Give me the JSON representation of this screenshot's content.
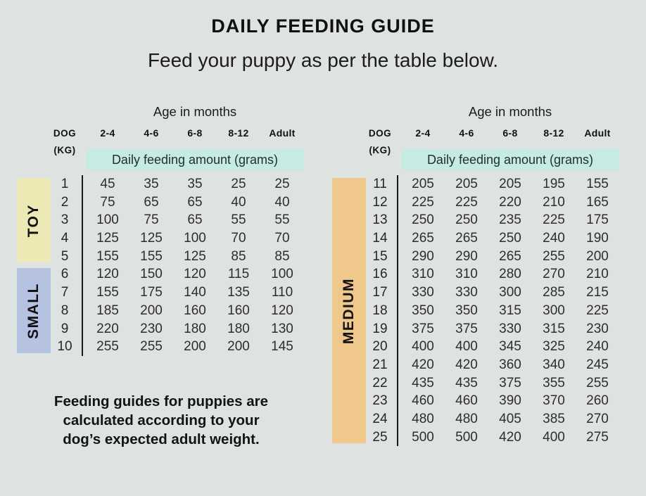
{
  "page": {
    "title": "DAILY FEEDING GUIDE",
    "subtitle": "Feed your puppy as per the table below.",
    "note_lines": [
      "Feeding guides for puppies are",
      "calculated according to your",
      "dog’s expected adult weight."
    ]
  },
  "colors": {
    "background": "#dee3e2",
    "band_teal": "#c6ebe2",
    "toy_yellow": "#ece9b5",
    "small_blue": "#b6c2e2",
    "medium_orange": "#f1c88b",
    "divider_black": "#191919"
  },
  "chart_data": {
    "type": "table",
    "title": "DAILY FEEDING GUIDE",
    "subtitle": "Feed your puppy as per the table below.",
    "unit": "grams per day",
    "note": "Feeding guides for puppies are calculated according to your dog’s expected adult weight.",
    "tables": [
      {
        "age_header": "Age in months",
        "dog_label": "DOG",
        "kg_label": "(KG)",
        "age_columns": [
          "2-4",
          "4-6",
          "6-8",
          "8-12",
          "Adult"
        ],
        "band_label": "Daily feeding amount (grams)",
        "groups": [
          {
            "label": "TOY",
            "color": "#ece9b5",
            "rows": [
              {
                "kg": "1",
                "values": [
                  "45",
                  "35",
                  "35",
                  "25",
                  "25"
                ]
              },
              {
                "kg": "2",
                "values": [
                  "75",
                  "65",
                  "65",
                  "40",
                  "40"
                ]
              },
              {
                "kg": "3",
                "values": [
                  "100",
                  "75",
                  "65",
                  "55",
                  "55"
                ]
              },
              {
                "kg": "4",
                "values": [
                  "125",
                  "125",
                  "100",
                  "70",
                  "70"
                ]
              },
              {
                "kg": "5",
                "values": [
                  "155",
                  "155",
                  "125",
                  "85",
                  "85"
                ]
              }
            ]
          },
          {
            "label": "SMALL",
            "color": "#b6c2e2",
            "rows": [
              {
                "kg": "6",
                "values": [
                  "120",
                  "150",
                  "120",
                  "115",
                  "100"
                ]
              },
              {
                "kg": "7",
                "values": [
                  "155",
                  "175",
                  "140",
                  "135",
                  "110"
                ]
              },
              {
                "kg": "8",
                "values": [
                  "185",
                  "200",
                  "160",
                  "160",
                  "120"
                ]
              },
              {
                "kg": "9",
                "values": [
                  "220",
                  "230",
                  "180",
                  "180",
                  "130"
                ]
              },
              {
                "kg": "10",
                "values": [
                  "255",
                  "255",
                  "200",
                  "200",
                  "145"
                ]
              }
            ]
          }
        ]
      },
      {
        "age_header": "Age in months",
        "dog_label": "DOG",
        "kg_label": "(KG)",
        "age_columns": [
          "2-4",
          "4-6",
          "6-8",
          "8-12",
          "Adult"
        ],
        "band_label": "Daily feeding amount (grams)",
        "groups": [
          {
            "label": "MEDIUM",
            "color": "#f1c88b",
            "rows": [
              {
                "kg": "11",
                "values": [
                  "205",
                  "205",
                  "205",
                  "195",
                  "155"
                ]
              },
              {
                "kg": "12",
                "values": [
                  "225",
                  "225",
                  "220",
                  "210",
                  "165"
                ]
              },
              {
                "kg": "13",
                "values": [
                  "250",
                  "250",
                  "235",
                  "225",
                  "175"
                ]
              },
              {
                "kg": "14",
                "values": [
                  "265",
                  "265",
                  "250",
                  "240",
                  "190"
                ]
              },
              {
                "kg": "15",
                "values": [
                  "290",
                  "290",
                  "265",
                  "255",
                  "200"
                ]
              },
              {
                "kg": "16",
                "values": [
                  "310",
                  "310",
                  "280",
                  "270",
                  "210"
                ]
              },
              {
                "kg": "17",
                "values": [
                  "330",
                  "330",
                  "300",
                  "285",
                  "215"
                ]
              },
              {
                "kg": "18",
                "values": [
                  "350",
                  "350",
                  "315",
                  "300",
                  "225"
                ]
              },
              {
                "kg": "19",
                "values": [
                  "375",
                  "375",
                  "330",
                  "315",
                  "230"
                ]
              },
              {
                "kg": "20",
                "values": [
                  "400",
                  "400",
                  "345",
                  "325",
                  "240"
                ]
              },
              {
                "kg": "21",
                "values": [
                  "420",
                  "420",
                  "360",
                  "340",
                  "245"
                ]
              },
              {
                "kg": "22",
                "values": [
                  "435",
                  "435",
                  "375",
                  "355",
                  "255"
                ]
              },
              {
                "kg": "23",
                "values": [
                  "460",
                  "460",
                  "390",
                  "370",
                  "260"
                ]
              },
              {
                "kg": "24",
                "values": [
                  "480",
                  "480",
                  "405",
                  "385",
                  "270"
                ]
              },
              {
                "kg": "25",
                "values": [
                  "500",
                  "500",
                  "420",
                  "400",
                  "275"
                ]
              }
            ]
          }
        ]
      }
    ]
  }
}
